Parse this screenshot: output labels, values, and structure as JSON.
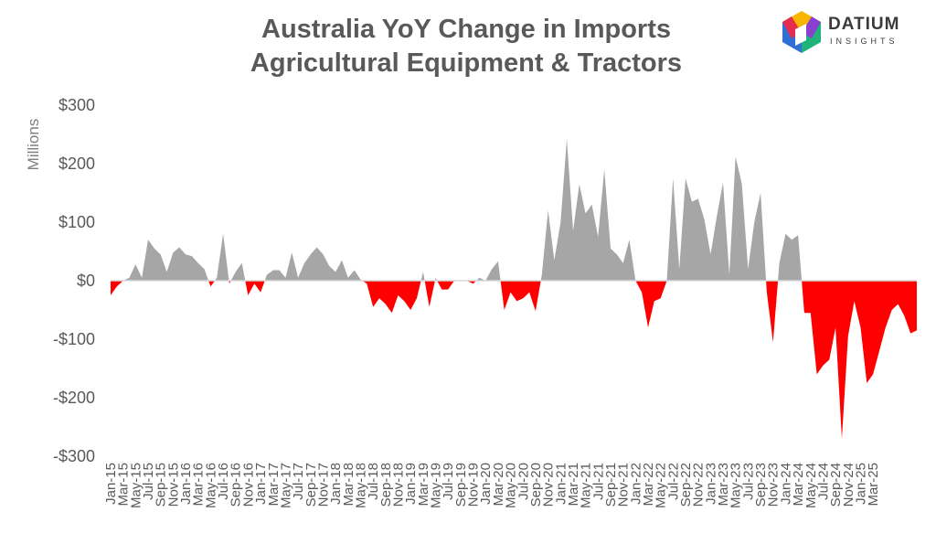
{
  "title_line1": "Australia YoY Change in Imports",
  "title_line2": "Agricultural Equipment & Tractors",
  "logo": {
    "word1": "DATIUM",
    "word2": "INSIGHTS"
  },
  "colors": {
    "positive": "#a6a6a6",
    "negative": "#ff0000",
    "text": "#595959",
    "axis": "#d9d9d9"
  },
  "chart_data": {
    "type": "area",
    "title": "Australia YoY Change in Imports Agricultural Equipment & Tractors",
    "ylabel": "Millions",
    "ylim": [
      -300,
      300
    ],
    "yticks": [
      300,
      200,
      100,
      0,
      -100,
      -200,
      -300
    ],
    "ytick_labels": [
      "$300",
      "$200",
      "$100",
      "$0",
      "-$100",
      "-$200",
      "-$300"
    ],
    "x_start": "Jan-15",
    "x_end": "Apr-25",
    "x_ticks": [
      "Jan-15",
      "Mar-15",
      "May-15",
      "Jul-15",
      "Sep-15",
      "Nov-15",
      "Jan-16",
      "Mar-16",
      "May-16",
      "Jul-16",
      "Sep-16",
      "Nov-16",
      "Jan-17",
      "Mar-17",
      "May-17",
      "Jul-17",
      "Sep-17",
      "Nov-17",
      "Jan-18",
      "Mar-18",
      "May-18",
      "Jul-18",
      "Sep-18",
      "Nov-18",
      "Jan-19",
      "Mar-19",
      "May-19",
      "Jul-19",
      "Sep-19",
      "Nov-19",
      "Jan-20",
      "Mar-20",
      "May-20",
      "Jul-20",
      "Sep-20",
      "Nov-20",
      "Jan-21",
      "Mar-21",
      "May-21",
      "Jul-21",
      "Sep-21",
      "Nov-21",
      "Jan-22",
      "Mar-22",
      "May-22",
      "Jul-22",
      "Sep-22",
      "Nov-22",
      "Jan-23",
      "Mar-23",
      "May-23",
      "Jul-23",
      "Sep-23",
      "Nov-23",
      "Jan-24",
      "Mar-24",
      "May-24",
      "Jul-24",
      "Sep-24",
      "Nov-24",
      "Jan-25",
      "Mar-25"
    ],
    "values": [
      -25,
      -10,
      0,
      5,
      28,
      5,
      70,
      55,
      45,
      15,
      48,
      57,
      45,
      42,
      30,
      20,
      -10,
      5,
      80,
      -5,
      15,
      30,
      -25,
      -5,
      -20,
      10,
      18,
      18,
      5,
      48,
      5,
      30,
      45,
      57,
      45,
      25,
      15,
      35,
      5,
      18,
      2,
      -5,
      -45,
      -30,
      -40,
      -55,
      -25,
      -35,
      -50,
      -30,
      15,
      -45,
      5,
      -15,
      -15,
      0,
      0,
      0,
      -5,
      5,
      0,
      20,
      33,
      -50,
      -20,
      -35,
      -30,
      -20,
      -52,
      10,
      120,
      35,
      100,
      242,
      85,
      165,
      115,
      130,
      75,
      190,
      55,
      45,
      30,
      70,
      0,
      -20,
      -80,
      -35,
      -30,
      0,
      175,
      20,
      175,
      135,
      140,
      105,
      45,
      110,
      168,
      10,
      212,
      165,
      20,
      100,
      150,
      -20,
      -105,
      30,
      80,
      70,
      78,
      -55,
      -55,
      -160,
      -145,
      -135,
      -80,
      -270,
      -95,
      -35,
      -80,
      -175,
      -160,
      -120,
      -80,
      -50,
      -40,
      -60,
      -90,
      -85
    ]
  }
}
